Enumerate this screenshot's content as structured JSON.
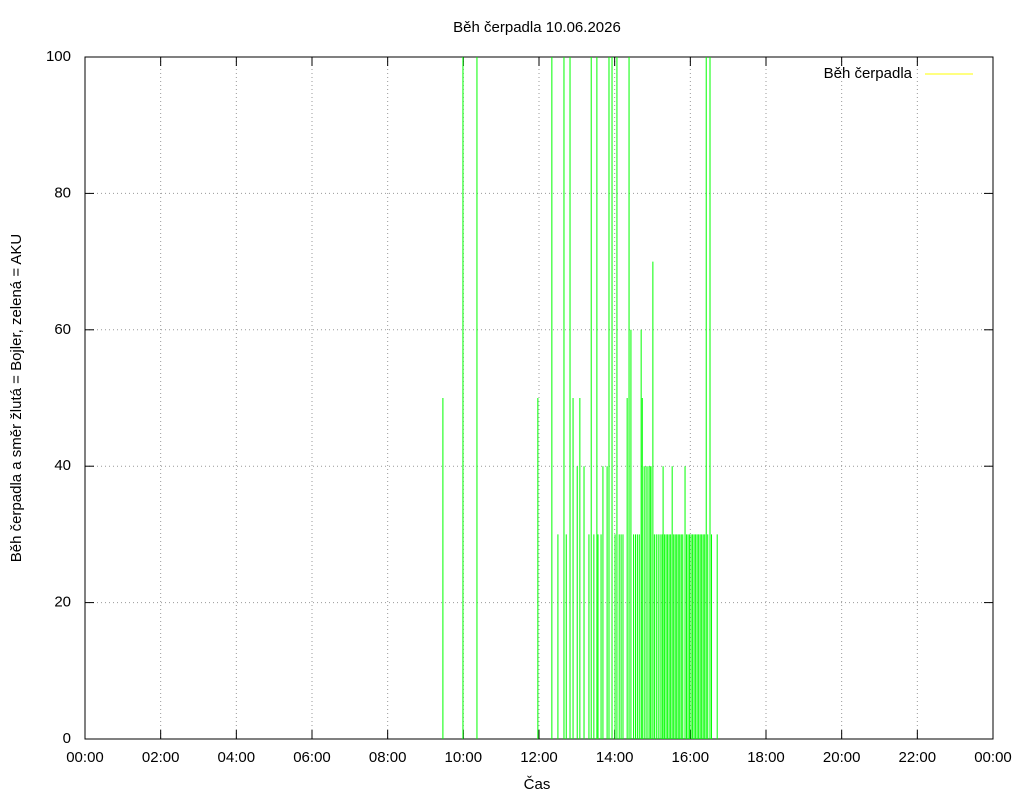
{
  "chart_data": {
    "type": "impulse",
    "title": "Běh čerpadla 10.06.2026",
    "x_label": "Čas",
    "y_label": "Běh čerpadla a směr žlutá = Bojler, zelená = AKU",
    "xlim": [
      0,
      24
    ],
    "xticks": [
      {
        "value": 0,
        "label": "00:00"
      },
      {
        "value": 2,
        "label": "02:00"
      },
      {
        "value": 4,
        "label": "04:00"
      },
      {
        "value": 6,
        "label": "06:00"
      },
      {
        "value": 8,
        "label": "08:00"
      },
      {
        "value": 10,
        "label": "10:00"
      },
      {
        "value": 12,
        "label": "12:00"
      },
      {
        "value": 14,
        "label": "14:00"
      },
      {
        "value": 16,
        "label": "16:00"
      },
      {
        "value": 18,
        "label": "18:00"
      },
      {
        "value": 20,
        "label": "20:00"
      },
      {
        "value": 22,
        "label": "22:00"
      },
      {
        "value": 24,
        "label": "00:00"
      }
    ],
    "ylim": [
      0,
      100
    ],
    "yticks": [
      0,
      20,
      40,
      60,
      80,
      100
    ],
    "grid": true,
    "legend": "top-right",
    "series": [
      {
        "name": "Běh čerpadla",
        "color": "#ffff00",
        "x": [],
        "values": []
      },
      {
        "color": "#00ff00",
        "x": [
          9.46,
          9.99,
          10.36,
          11.97,
          12.34,
          12.5,
          12.66,
          12.72,
          12.82,
          12.9,
          13.01,
          13.08,
          13.19,
          13.32,
          13.38,
          13.45,
          13.53,
          13.56,
          13.64,
          13.69,
          13.8,
          13.85,
          13.93,
          14.01,
          14.06,
          14.12,
          14.17,
          14.22,
          14.33,
          14.38,
          14.43,
          14.5,
          14.55,
          14.6,
          14.65,
          14.7,
          14.73,
          14.78,
          14.83,
          14.88,
          14.93,
          14.96,
          15.01,
          15.05,
          15.1,
          15.15,
          15.2,
          15.25,
          15.28,
          15.32,
          15.36,
          15.4,
          15.44,
          15.48,
          15.52,
          15.56,
          15.6,
          15.64,
          15.68,
          15.72,
          15.76,
          15.8,
          15.86,
          15.9,
          15.94,
          15.98,
          16.02,
          16.06,
          16.1,
          16.14,
          16.18,
          16.22,
          16.26,
          16.3,
          16.34,
          16.38,
          16.42,
          16.46,
          16.52,
          16.56,
          16.71
        ],
        "values": [
          50,
          100,
          100,
          50,
          100,
          30,
          100,
          30,
          100,
          50,
          40,
          50,
          40,
          30,
          100,
          30,
          100,
          30,
          30,
          40,
          40,
          100,
          100,
          30,
          100,
          30,
          30,
          30,
          50,
          100,
          60,
          30,
          30,
          30,
          30,
          60,
          50,
          40,
          40,
          40,
          40,
          40,
          70,
          30,
          30,
          30,
          30,
          30,
          40,
          30,
          30,
          30,
          30,
          30,
          40,
          30,
          30,
          30,
          30,
          30,
          30,
          30,
          40,
          30,
          30,
          30,
          30,
          30,
          30,
          30,
          30,
          30,
          30,
          30,
          30,
          30,
          100,
          30,
          100,
          30,
          30
        ]
      }
    ]
  }
}
